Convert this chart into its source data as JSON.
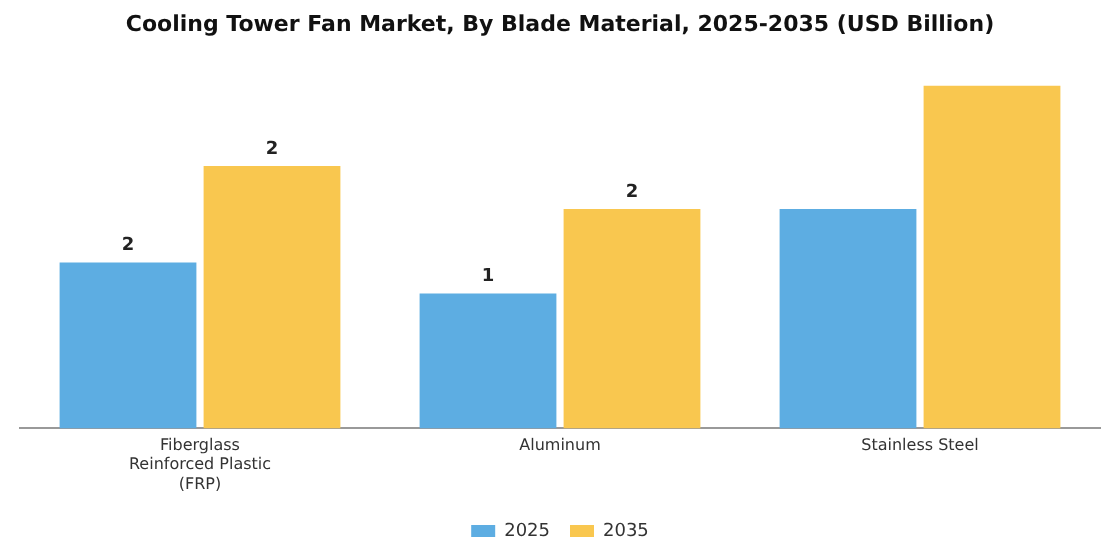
{
  "chart_data": {
    "type": "bar",
    "title": "Cooling Tower Fan Market, By Blade Material, 2025-2035 (USD Billion)",
    "categories": [
      "Fiberglass Reinforced Plastic (FRP)",
      "Aluminum",
      "Stainless Steel"
    ],
    "legend": "bottom",
    "grid": false,
    "series": [
      {
        "name": "2025",
        "color": "#5dade2",
        "values": [
          1.55,
          1.26,
          2.05
        ],
        "value_labels": [
          "2",
          "1",
          null
        ]
      },
      {
        "name": "2035",
        "color": "#f9c74f",
        "values": [
          2.45,
          2.05,
          3.2
        ],
        "value_labels": [
          "2",
          "2",
          null
        ]
      }
    ]
  }
}
